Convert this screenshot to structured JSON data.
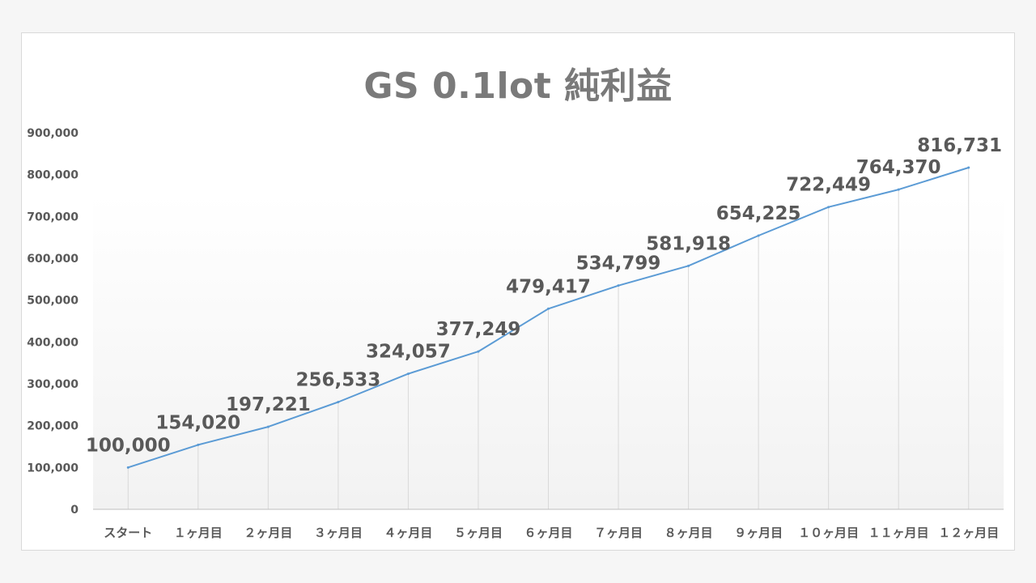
{
  "chart_data": {
    "type": "line",
    "title": "GS 0.1lot 純利益",
    "categories": [
      "スタート",
      "１ヶ月目",
      "２ヶ月目",
      "３ヶ月目",
      "４ヶ月目",
      "５ヶ月目",
      "６ヶ月目",
      "７ヶ月目",
      "８ヶ月目",
      "９ヶ月目",
      "１０ヶ月目",
      "１１ヶ月目",
      "１２ヶ月目"
    ],
    "series": [
      {
        "values": [
          100000,
          154020,
          197221,
          256533,
          324057,
          377249,
          479417,
          534799,
          581918,
          654225,
          722449,
          764370,
          816731
        ],
        "color": "#5b9bd5"
      }
    ],
    "data_labels": [
      "100,000",
      "154,020",
      "197,221",
      "256,533",
      "324,057",
      "377,249",
      "479,417",
      "534,799",
      "581,918",
      "654,225",
      "722,449",
      "764,370",
      "816,731"
    ],
    "y_ticks": [
      "0",
      "100,000",
      "200,000",
      "300,000",
      "400,000",
      "500,000",
      "600,000",
      "700,000",
      "800,000",
      "900,000"
    ],
    "ylim": [
      0,
      900000
    ],
    "xlabel": "",
    "ylabel": "",
    "grid": "vertical",
    "legend": "none"
  }
}
